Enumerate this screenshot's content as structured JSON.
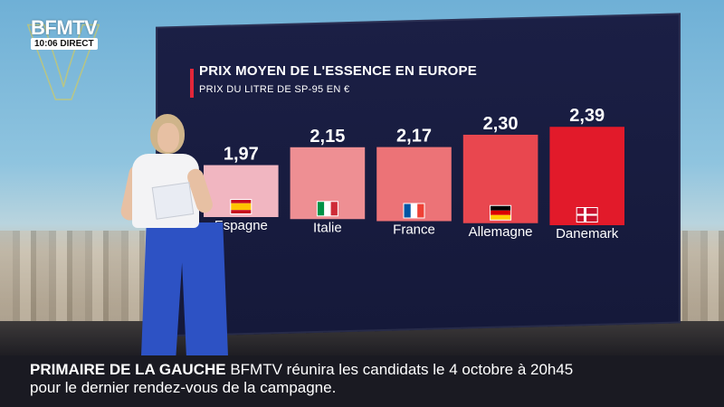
{
  "broadcast": {
    "channel": "BFMTV",
    "time": "10:06",
    "live_label": "DIRECT"
  },
  "chart_data": {
    "type": "bar",
    "title": "PRIX MOYEN DE L'ESSENCE EN EUROPE",
    "subtitle": "PRIX DU LITRE DE SP-95 EN €",
    "categories": [
      "Espagne",
      "Italie",
      "France",
      "Allemagne",
      "Danemark"
    ],
    "values": [
      1.97,
      2.15,
      2.17,
      2.3,
      2.39
    ],
    "value_labels": [
      "1,97",
      "2,15",
      "2,17",
      "2,30",
      "2,39"
    ],
    "flags": [
      "spain-flag-icon",
      "italy-flag-icon",
      "france-flag-icon",
      "germany-flag-icon",
      "denmark-flag-icon"
    ],
    "bar_colors": [
      "#f1b6c1",
      "#ee8f93",
      "#ec7377",
      "#e9474f",
      "#e21a2a"
    ],
    "ylim": [
      1.5,
      2.4
    ],
    "grid": false,
    "legend": "none"
  },
  "ticker": {
    "headline": "PRIMAIRE DE LA GAUCHE",
    "line1_rest": " BFMTV réunira les candidats le 4 octobre à 20h45",
    "line2": "pour le dernier rendez-vous de la campagne."
  }
}
